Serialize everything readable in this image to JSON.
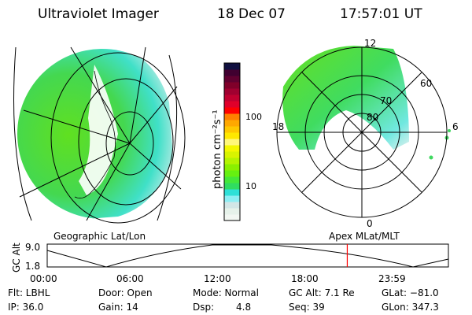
{
  "header": {
    "instrument": "Ultraviolet Imager",
    "date": "18 Dec 07",
    "time": "17:57:01 UT"
  },
  "colorbar": {
    "label": "photon cm⁻²s⁻¹",
    "ticks": [
      "100",
      "10"
    ],
    "colors": [
      "#f2f7f2",
      "#e6f2ea",
      "#d2e6e6",
      "#8ceef4",
      "#2ee0d8",
      "#30dd60",
      "#44e838",
      "#66f010",
      "#8af000",
      "#b4f400",
      "#d8f400",
      "#f4f800",
      "#fff87a",
      "#ffe800",
      "#ffc800",
      "#ffa800",
      "#ff8000",
      "#ff0000",
      "#e0002a",
      "#c00030",
      "#a00030",
      "#80002a",
      "#600030",
      "#400030",
      "#101040"
    ]
  },
  "left_map": {
    "label": "Geographic Lat/Lon"
  },
  "right_map": {
    "label": "Apex MLat/MLT",
    "mlt_labels": [
      "12",
      "18",
      "6",
      "0"
    ],
    "lat_labels": [
      "60",
      "70",
      "80"
    ]
  },
  "altitude_plot": {
    "ylabel": "GC Alt",
    "yticks": [
      "9.0",
      "1.8"
    ],
    "xticks": [
      "00:00",
      "06:00",
      "12:00",
      "18:00",
      "23:59"
    ],
    "current_time_hours": 17.95,
    "marker_color": "#ff0000"
  },
  "info": {
    "filter": "Flt: LBHL",
    "ip": "IP: 36.0",
    "door": "Door: Open",
    "gain": "Gain: 14",
    "mode": "Mode: Normal",
    "dsp_label": "Dsp:",
    "dsp_value": "4.8",
    "gc_alt": "GC Alt: 7.1 Re",
    "seq": "Seq: 39",
    "glat": "GLat: −81.0",
    "glon": "GLon: 347.3"
  }
}
